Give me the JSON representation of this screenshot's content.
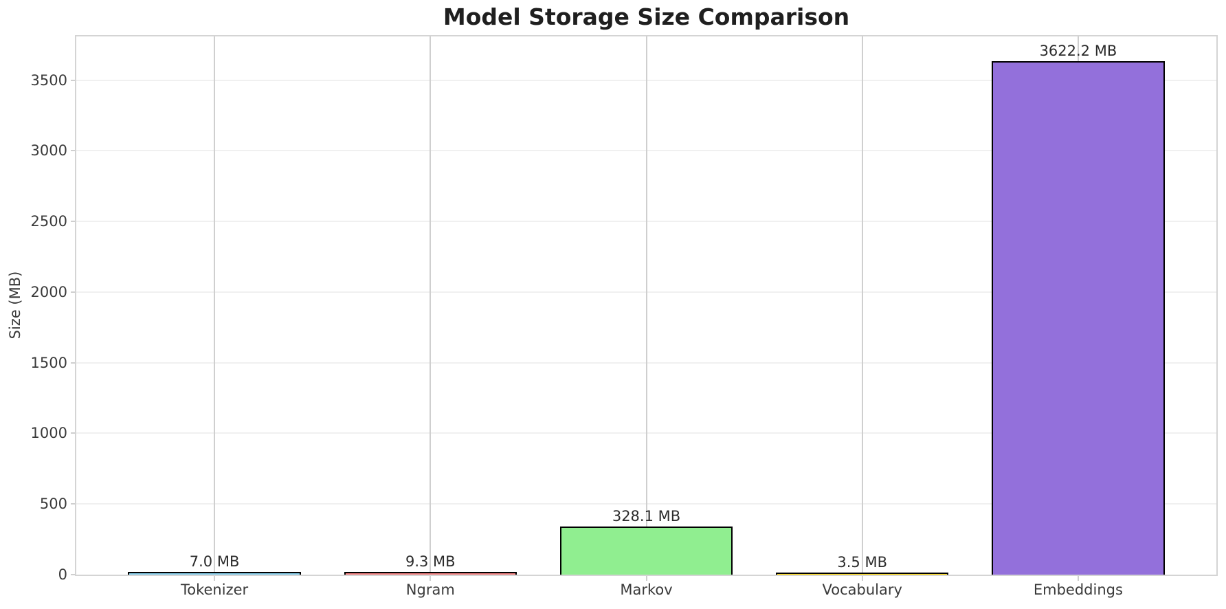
{
  "chart_data": {
    "type": "bar",
    "title": "Model Storage Size Comparison",
    "xlabel": "",
    "ylabel": "Size (MB)",
    "categories": [
      "Tokenizer",
      "Ngram",
      "Markov",
      "Vocabulary",
      "Embeddings"
    ],
    "values": [
      7.0,
      9.3,
      328.1,
      3.5,
      3622.2
    ],
    "value_labels": [
      "7.0 MB",
      "9.3 MB",
      "328.1 MB",
      "3.5 MB",
      "3622.2 MB"
    ],
    "bar_colors": [
      "#87ceeb",
      "#f08080",
      "#90ee90",
      "#ffd700",
      "#9370db"
    ],
    "bar_edge_color": "#000000",
    "ylim": [
      0,
      3810
    ],
    "yticks": [
      0,
      500,
      1000,
      1500,
      2000,
      2500,
      3000,
      3500
    ],
    "grid": true,
    "legend": null,
    "colors": {
      "background": "#ffffff",
      "spine": "#d4d4d4",
      "h_grid": "#f0f0f0",
      "v_grid": "#cfcfcf",
      "title_text": "#1f1f1f",
      "tick_text": "#3a3a3a",
      "value_text": "#2b2b2b"
    }
  }
}
